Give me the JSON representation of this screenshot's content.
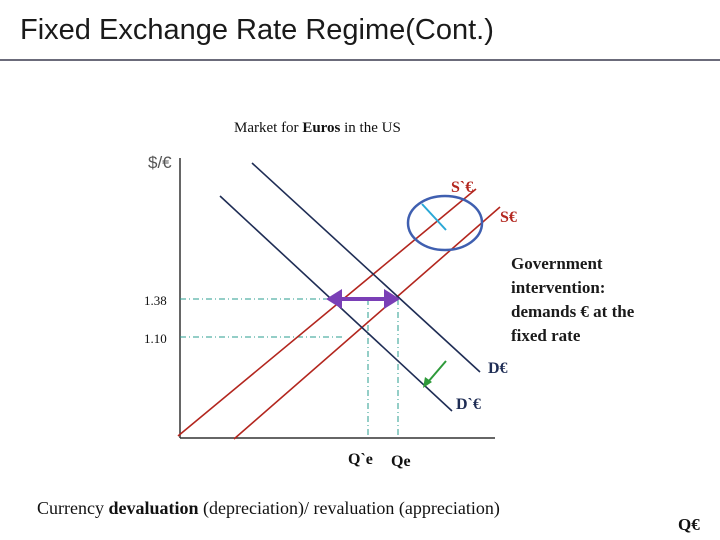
{
  "slide": {
    "title": "Fixed Exchange Rate Regime(Cont.)"
  },
  "diagram": {
    "market_title_prefix": "Market for ",
    "market_title_bold": "Euros",
    "market_title_suffix": " in the US",
    "y_axis_label": "$/€",
    "x_axis_label": "Q€",
    "price_levels": [
      "1.38",
      "1.10"
    ],
    "curve_labels": {
      "supply_new": "S`€",
      "supply": "S€",
      "demand": "D€",
      "demand_new": "D`€"
    },
    "quantity_labels": {
      "q_new": "Q`e",
      "q_e": "Qe"
    },
    "intervention_note": [
      "Government",
      "intervention:",
      "demands € at the",
      "fixed rate"
    ]
  },
  "caption": {
    "prefix": "Currency ",
    "bold": "devaluation",
    "suffix": " (depreciation)/ revaluation (appreciation)"
  },
  "colors": {
    "supply_curve": "#b3261e",
    "demand_curve": "#1f2d55",
    "highlight_circle": "#3f5fb0",
    "shift_tick": "#2aa8d6",
    "demand_shift_arrow": "#2e9a3a",
    "intervention_arrow": "#7a3fb6",
    "guide_lines": "#2a9d8f"
  }
}
